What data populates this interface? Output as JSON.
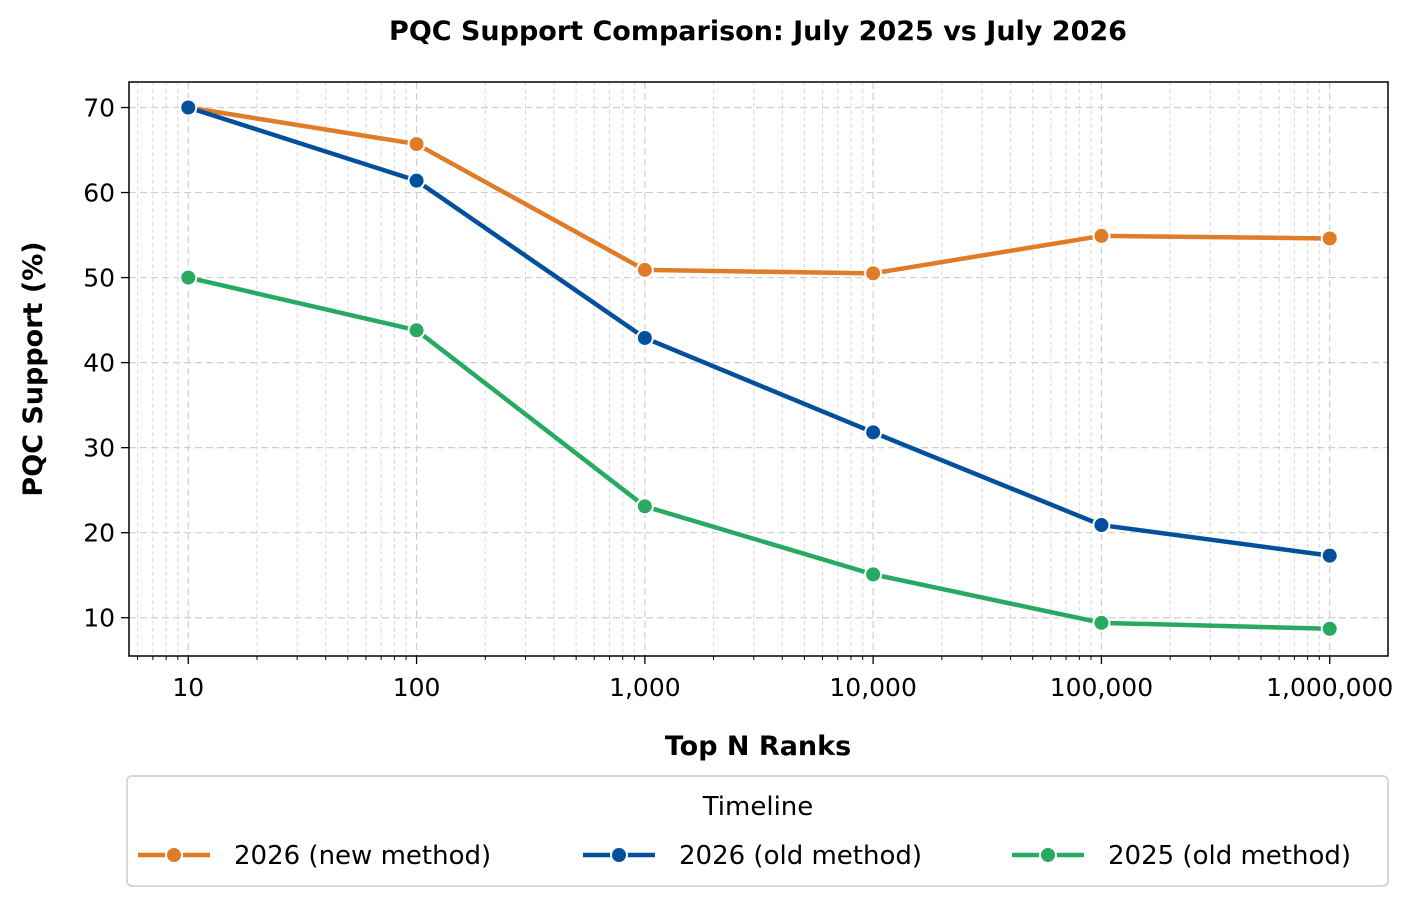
{
  "chart_data": {
    "type": "line",
    "title": "PQC Support Comparison: July 2025 vs July 2026",
    "xlabel": "Top N Ranks",
    "ylabel": "PQC Support (%)",
    "x_scale": "log",
    "x": [
      10,
      100,
      1000,
      10000,
      100000,
      1000000
    ],
    "x_tick_labels": [
      "10",
      "100",
      "1,000",
      "10,000",
      "100,000",
      "1,000,000"
    ],
    "y_ticks": [
      10,
      20,
      30,
      40,
      50,
      60,
      70
    ],
    "ylim": [
      5.5,
      73
    ],
    "xlim": [
      5.5,
      1800000
    ],
    "grid": true,
    "legend": {
      "title": "Timeline",
      "placement": "bottom"
    },
    "series": [
      {
        "name": "2026 (new method)",
        "color": "#e07b27",
        "values": [
          70.0,
          65.7,
          50.9,
          50.5,
          54.9,
          54.6
        ]
      },
      {
        "name": "2026 (old method)",
        "color": "#02509c",
        "values": [
          70.0,
          61.4,
          42.9,
          31.8,
          20.9,
          17.3
        ]
      },
      {
        "name": "2025 (old method)",
        "color": "#27a961",
        "values": [
          50.0,
          43.8,
          23.1,
          15.1,
          9.4,
          8.7
        ]
      }
    ]
  }
}
